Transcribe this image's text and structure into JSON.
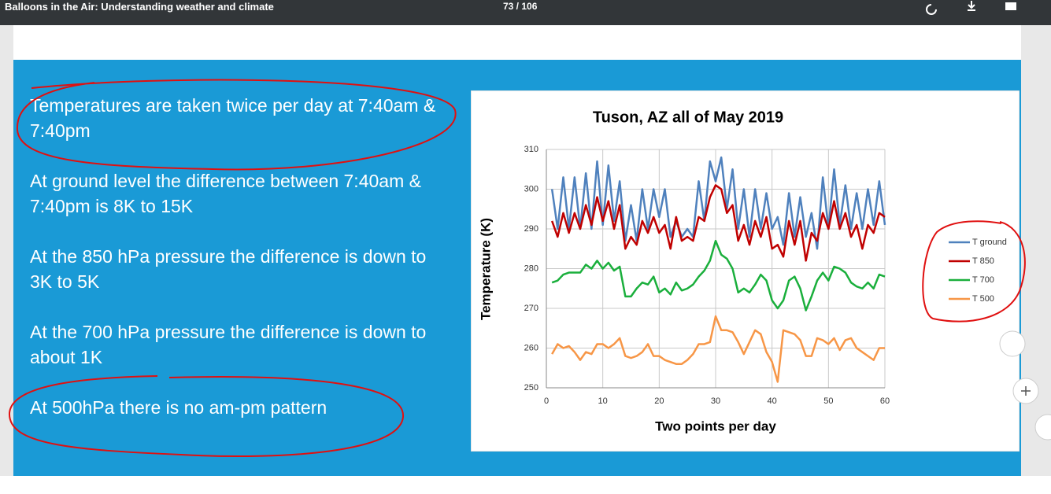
{
  "header": {
    "title": "Balloons in the Air: Understanding weather and climate",
    "page": "73 / 106"
  },
  "slide": {
    "bullets": [
      "Temperatures are taken twice per day at 7:40am & 7:40pm",
      "At ground level the difference between 7:40am & 7:40pm is 8K to 15K",
      "At the 850 hPa pressure  the difference is down to 3K to 5K",
      "At the 700 hPa pressure  the difference is down to about 1K",
      "At  500hPa there is no am-pm pattern"
    ]
  },
  "chart_data": {
    "type": "line",
    "title": "Tuson, AZ  all of May 2019",
    "x_label": "Two points per day",
    "y_label": "Temperature (K)",
    "x": [
      1,
      2,
      3,
      4,
      5,
      6,
      7,
      8,
      9,
      10,
      11,
      12,
      13,
      14,
      15,
      16,
      17,
      18,
      19,
      20,
      21,
      22,
      23,
      24,
      25,
      26,
      27,
      28,
      29,
      30,
      31,
      32,
      33,
      34,
      35,
      36,
      37,
      38,
      39,
      40,
      41,
      42,
      43,
      44,
      45,
      46,
      47,
      48,
      49,
      50,
      51,
      52,
      53,
      54,
      55,
      56,
      57,
      58,
      59,
      60
    ],
    "xlim": [
      0,
      60
    ],
    "xticks": [
      0,
      10,
      20,
      30,
      40,
      50,
      60
    ],
    "ylim": [
      250,
      310
    ],
    "yticks": [
      250,
      260,
      270,
      280,
      290,
      300,
      310
    ],
    "grid": true,
    "legend": "right",
    "series": [
      {
        "name": "T ground",
        "color": "#4f81bd",
        "values": [
          300,
          290,
          303,
          290,
          303,
          290,
          304,
          290,
          307,
          291,
          306,
          292,
          302,
          287,
          296,
          287,
          300,
          290,
          300,
          293,
          300,
          288,
          292,
          288,
          290,
          288,
          302,
          292,
          307,
          302,
          308,
          295,
          305,
          290,
          300,
          288,
          300,
          290,
          299,
          290,
          293,
          286,
          299,
          288,
          298,
          288,
          294,
          285,
          303,
          290,
          305,
          291,
          301,
          290,
          299,
          290,
          300,
          291,
          302,
          291
        ]
      },
      {
        "name": "T 850",
        "color": "#c00000",
        "values": [
          292,
          288,
          294,
          289,
          294,
          290,
          296,
          291,
          298,
          292,
          297,
          290,
          296,
          285,
          288,
          286,
          292,
          289,
          293,
          289,
          291,
          285,
          293,
          287,
          288,
          287,
          293,
          292,
          298,
          301,
          300,
          294,
          296,
          287,
          291,
          286,
          292,
          288,
          293,
          285,
          286,
          283,
          292,
          286,
          292,
          282,
          289,
          287,
          294,
          290,
          297,
          290,
          294,
          288,
          291,
          285,
          291,
          289,
          294,
          293
        ]
      },
      {
        "name": "T 700",
        "color": "#1aaf3c",
        "values": [
          276.5,
          277,
          278.5,
          279,
          279,
          279,
          281,
          280,
          282,
          280,
          281.5,
          279.5,
          280.5,
          273,
          273,
          275,
          276.5,
          276,
          278,
          274,
          275,
          273.5,
          276.5,
          274.5,
          275,
          276,
          278,
          279.5,
          282,
          287,
          283.5,
          282.5,
          280,
          274,
          275,
          274,
          276,
          278.5,
          277,
          272,
          270,
          272,
          277,
          278,
          275,
          269.5,
          273,
          277,
          279,
          277,
          280.5,
          280,
          279,
          276.5,
          275.5,
          275,
          276.5,
          275,
          278.5,
          278
        ]
      },
      {
        "name": "T 500",
        "color": "#f79646",
        "values": [
          258.5,
          261,
          260,
          260.5,
          259,
          257,
          259,
          258.5,
          261,
          261,
          260,
          261,
          262.5,
          258,
          257.5,
          258,
          259,
          261,
          258,
          258,
          257,
          256.5,
          256,
          256,
          257,
          258.5,
          261,
          261,
          261.5,
          268,
          264.5,
          264.5,
          264,
          261.5,
          258.5,
          261.5,
          264.5,
          263.5,
          259,
          256.5,
          251.5,
          264.5,
          264,
          263.5,
          262,
          258,
          258,
          262.5,
          262,
          261,
          262.5,
          259.5,
          262,
          262.5,
          260,
          259,
          258,
          257,
          260,
          260
        ]
      }
    ]
  }
}
